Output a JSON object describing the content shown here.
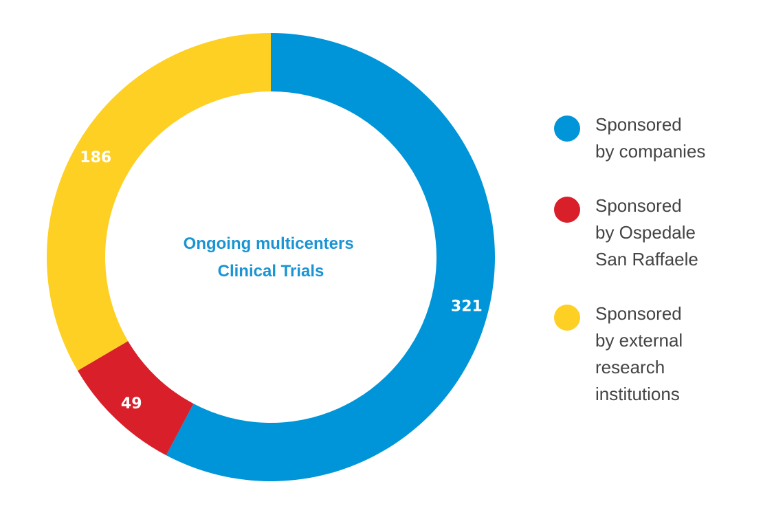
{
  "chart_data": {
    "type": "pie",
    "title": "Ongoing multicenters Clinical Trials",
    "title_lines": [
      "Ongoing multicenters",
      "Clinical Trials"
    ],
    "title_color": "#1a94d4",
    "donut": true,
    "legend_position": "right",
    "categories": [
      "Sponsored by companies",
      "Sponsored by Ospedale San Raffaele",
      "Sponsored by external research institutions"
    ],
    "values": [
      321,
      49,
      186
    ],
    "labels": [
      "321",
      "49",
      "186"
    ],
    "colors": [
      "#0095d8",
      "#d81f2a",
      "#fdd023"
    ],
    "legend": [
      {
        "lines": [
          "Sponsored",
          "by companies"
        ],
        "color": "#0095d8"
      },
      {
        "lines": [
          "Sponsored",
          "by Ospedale",
          "San Raffaele"
        ],
        "color": "#d81f2a"
      },
      {
        "lines": [
          "Sponsored",
          "by external",
          "research",
          "institutions"
        ],
        "color": "#fdd023"
      }
    ]
  }
}
